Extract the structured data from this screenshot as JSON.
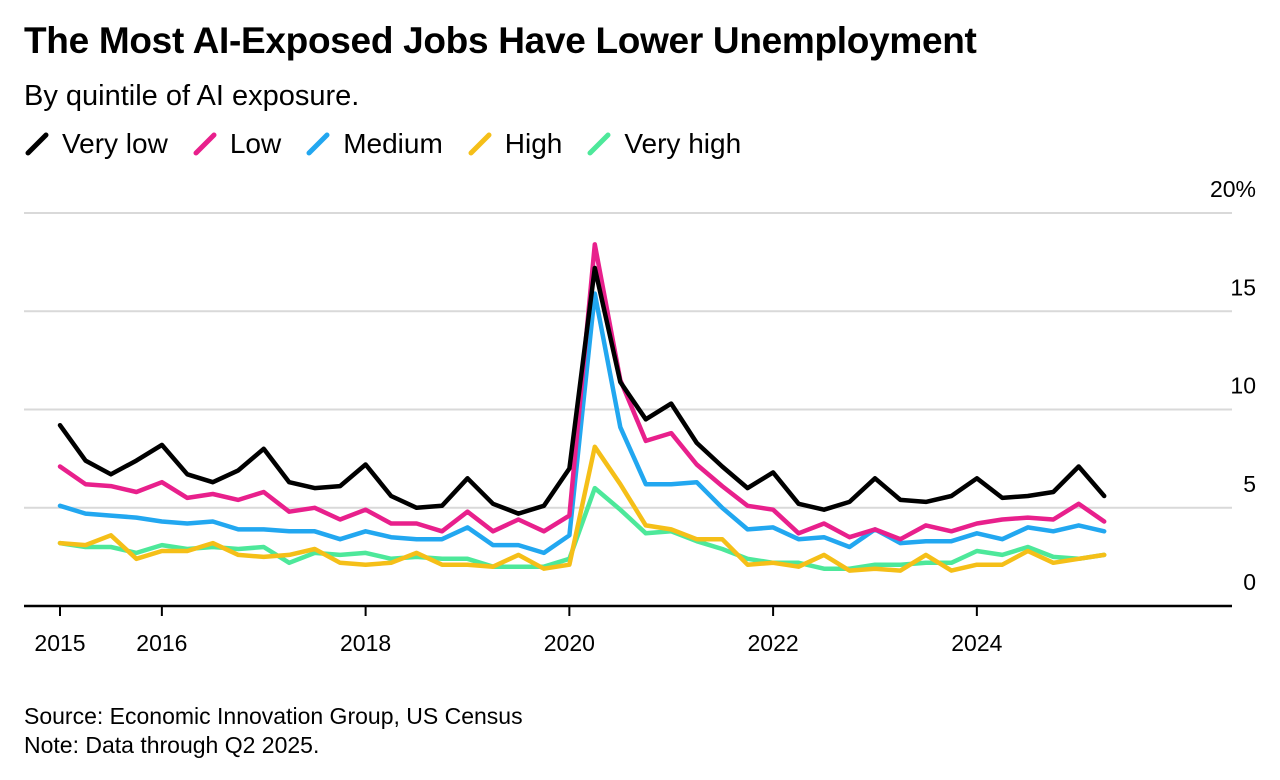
{
  "title": "The Most AI-Exposed Jobs Have Lower Unemployment",
  "subtitle": "By quintile of AI exposure.",
  "source": "Source: Economic Innovation Group, US Census",
  "note": "Note: Data through Q2 2025.",
  "chart_data": {
    "type": "line",
    "title": "The Most AI-Exposed Jobs Have Lower Unemployment",
    "subtitle": "By quintile of AI exposure.",
    "xlabel": "",
    "ylabel": "",
    "ylim": [
      0,
      20
    ],
    "xlim": [
      2015,
      2026.75
    ],
    "y_ticks": [
      0,
      5,
      10,
      15,
      20
    ],
    "y_tick_labels": [
      "0",
      "5",
      "10",
      "15",
      "20%"
    ],
    "x_ticks": [
      2015,
      2016,
      2018,
      2020,
      2022,
      2024
    ],
    "x_tick_labels": [
      "2015",
      "2016",
      "2018",
      "2020",
      "2022",
      "2024"
    ],
    "grid": true,
    "legend_position": "top-left",
    "x": [
      2015.0,
      2015.25,
      2015.5,
      2015.75,
      2016.0,
      2016.25,
      2016.5,
      2016.75,
      2017.0,
      2017.25,
      2017.5,
      2017.75,
      2018.0,
      2018.25,
      2018.5,
      2018.75,
      2019.0,
      2019.25,
      2019.5,
      2019.75,
      2020.0,
      2020.25,
      2020.5,
      2020.75,
      2021.0,
      2021.25,
      2021.5,
      2021.75,
      2022.0,
      2022.25,
      2022.5,
      2022.75,
      2023.0,
      2023.25,
      2023.5,
      2023.75,
      2024.0,
      2024.25,
      2024.5,
      2024.75,
      2025.0,
      2025.25
    ],
    "series": [
      {
        "name": "Very low",
        "color": "#000000",
        "values": [
          9.2,
          7.4,
          6.7,
          7.4,
          8.2,
          6.7,
          6.3,
          6.9,
          8.0,
          6.3,
          6.0,
          6.1,
          7.2,
          5.6,
          5.0,
          5.1,
          6.5,
          5.2,
          4.7,
          5.1,
          7.0,
          17.2,
          11.4,
          9.5,
          10.3,
          8.3,
          7.1,
          6.0,
          6.8,
          5.2,
          4.9,
          5.3,
          6.5,
          5.4,
          5.3,
          5.6,
          6.5,
          5.5,
          5.6,
          5.8,
          7.1,
          5.6
        ]
      },
      {
        "name": "Low",
        "color": "#e8208c",
        "values": [
          7.1,
          6.2,
          6.1,
          5.8,
          6.3,
          5.5,
          5.7,
          5.4,
          5.8,
          4.8,
          5.0,
          4.4,
          4.9,
          4.2,
          4.2,
          3.8,
          4.8,
          3.8,
          4.4,
          3.8,
          4.6,
          18.4,
          11.5,
          8.4,
          8.8,
          7.2,
          6.1,
          5.1,
          4.9,
          3.7,
          4.2,
          3.5,
          3.9,
          3.4,
          4.1,
          3.8,
          4.2,
          4.4,
          4.5,
          4.4,
          5.2,
          4.3
        ]
      },
      {
        "name": "Medium",
        "color": "#22a7f0",
        "values": [
          5.1,
          4.7,
          4.6,
          4.5,
          4.3,
          4.2,
          4.3,
          3.9,
          3.9,
          3.8,
          3.8,
          3.4,
          3.8,
          3.5,
          3.4,
          3.4,
          4.0,
          3.1,
          3.1,
          2.7,
          3.6,
          15.9,
          9.1,
          6.2,
          6.2,
          6.3,
          5.0,
          3.9,
          4.0,
          3.4,
          3.5,
          3.0,
          3.9,
          3.2,
          3.3,
          3.3,
          3.7,
          3.4,
          4.0,
          3.8,
          4.1,
          3.8
        ]
      },
      {
        "name": "High",
        "color": "#f5bf18",
        "values": [
          3.2,
          3.1,
          3.6,
          2.4,
          2.8,
          2.8,
          3.2,
          2.6,
          2.5,
          2.6,
          2.9,
          2.2,
          2.1,
          2.2,
          2.7,
          2.1,
          2.1,
          2.0,
          2.6,
          1.9,
          2.1,
          8.1,
          6.2,
          4.1,
          3.9,
          3.4,
          3.4,
          2.1,
          2.2,
          2.0,
          2.6,
          1.8,
          1.9,
          1.8,
          2.6,
          1.8,
          2.1,
          2.1,
          2.8,
          2.2,
          2.4,
          2.6
        ]
      },
      {
        "name": "Very high",
        "color": "#4de89a",
        "values": [
          3.2,
          3.0,
          3.0,
          2.7,
          3.1,
          2.9,
          3.0,
          2.9,
          3.0,
          2.2,
          2.7,
          2.6,
          2.7,
          2.4,
          2.5,
          2.4,
          2.4,
          2.0,
          2.0,
          2.0,
          2.4,
          6.0,
          4.9,
          3.7,
          3.8,
          3.3,
          2.9,
          2.4,
          2.2,
          2.2,
          1.9,
          1.9,
          2.1,
          2.1,
          2.2,
          2.2,
          2.8,
          2.6,
          3.0,
          2.5,
          2.4,
          2.6
        ]
      }
    ]
  }
}
